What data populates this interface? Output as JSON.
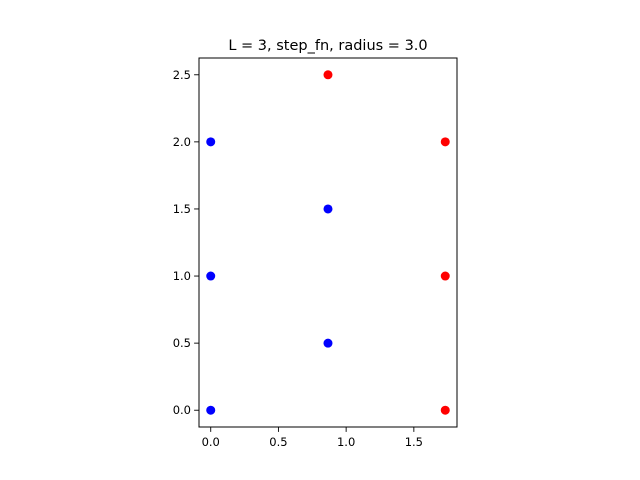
{
  "chart_data": {
    "type": "scatter",
    "title": "L = 3, step_fn, radius = 3.0",
    "xlabel": "",
    "ylabel": "",
    "xlim": [
      -0.0866,
      1.8187
    ],
    "ylim": [
      -0.125,
      2.625
    ],
    "grid": false,
    "x_ticks": [
      0.0,
      0.5,
      1.0,
      1.5
    ],
    "x_tick_labels": [
      "0.0",
      "0.5",
      "1.0",
      "1.5"
    ],
    "y_ticks": [
      0.0,
      0.5,
      1.0,
      1.5,
      2.0,
      2.5
    ],
    "y_tick_labels": [
      "0.0",
      "0.5",
      "1.0",
      "1.5",
      "2.0",
      "2.5"
    ],
    "series": [
      {
        "color": "#0000ff",
        "points": [
          {
            "x": 0.0,
            "y": 0.0
          },
          {
            "x": 0.0,
            "y": 1.0
          },
          {
            "x": 0.0,
            "y": 2.0
          },
          {
            "x": 0.866,
            "y": 0.5
          },
          {
            "x": 0.866,
            "y": 1.5
          }
        ]
      },
      {
        "color": "#ff0000",
        "points": [
          {
            "x": 0.866,
            "y": 2.5
          },
          {
            "x": 1.732,
            "y": 0.0
          },
          {
            "x": 1.732,
            "y": 1.0
          },
          {
            "x": 1.732,
            "y": 2.0
          }
        ]
      }
    ]
  }
}
